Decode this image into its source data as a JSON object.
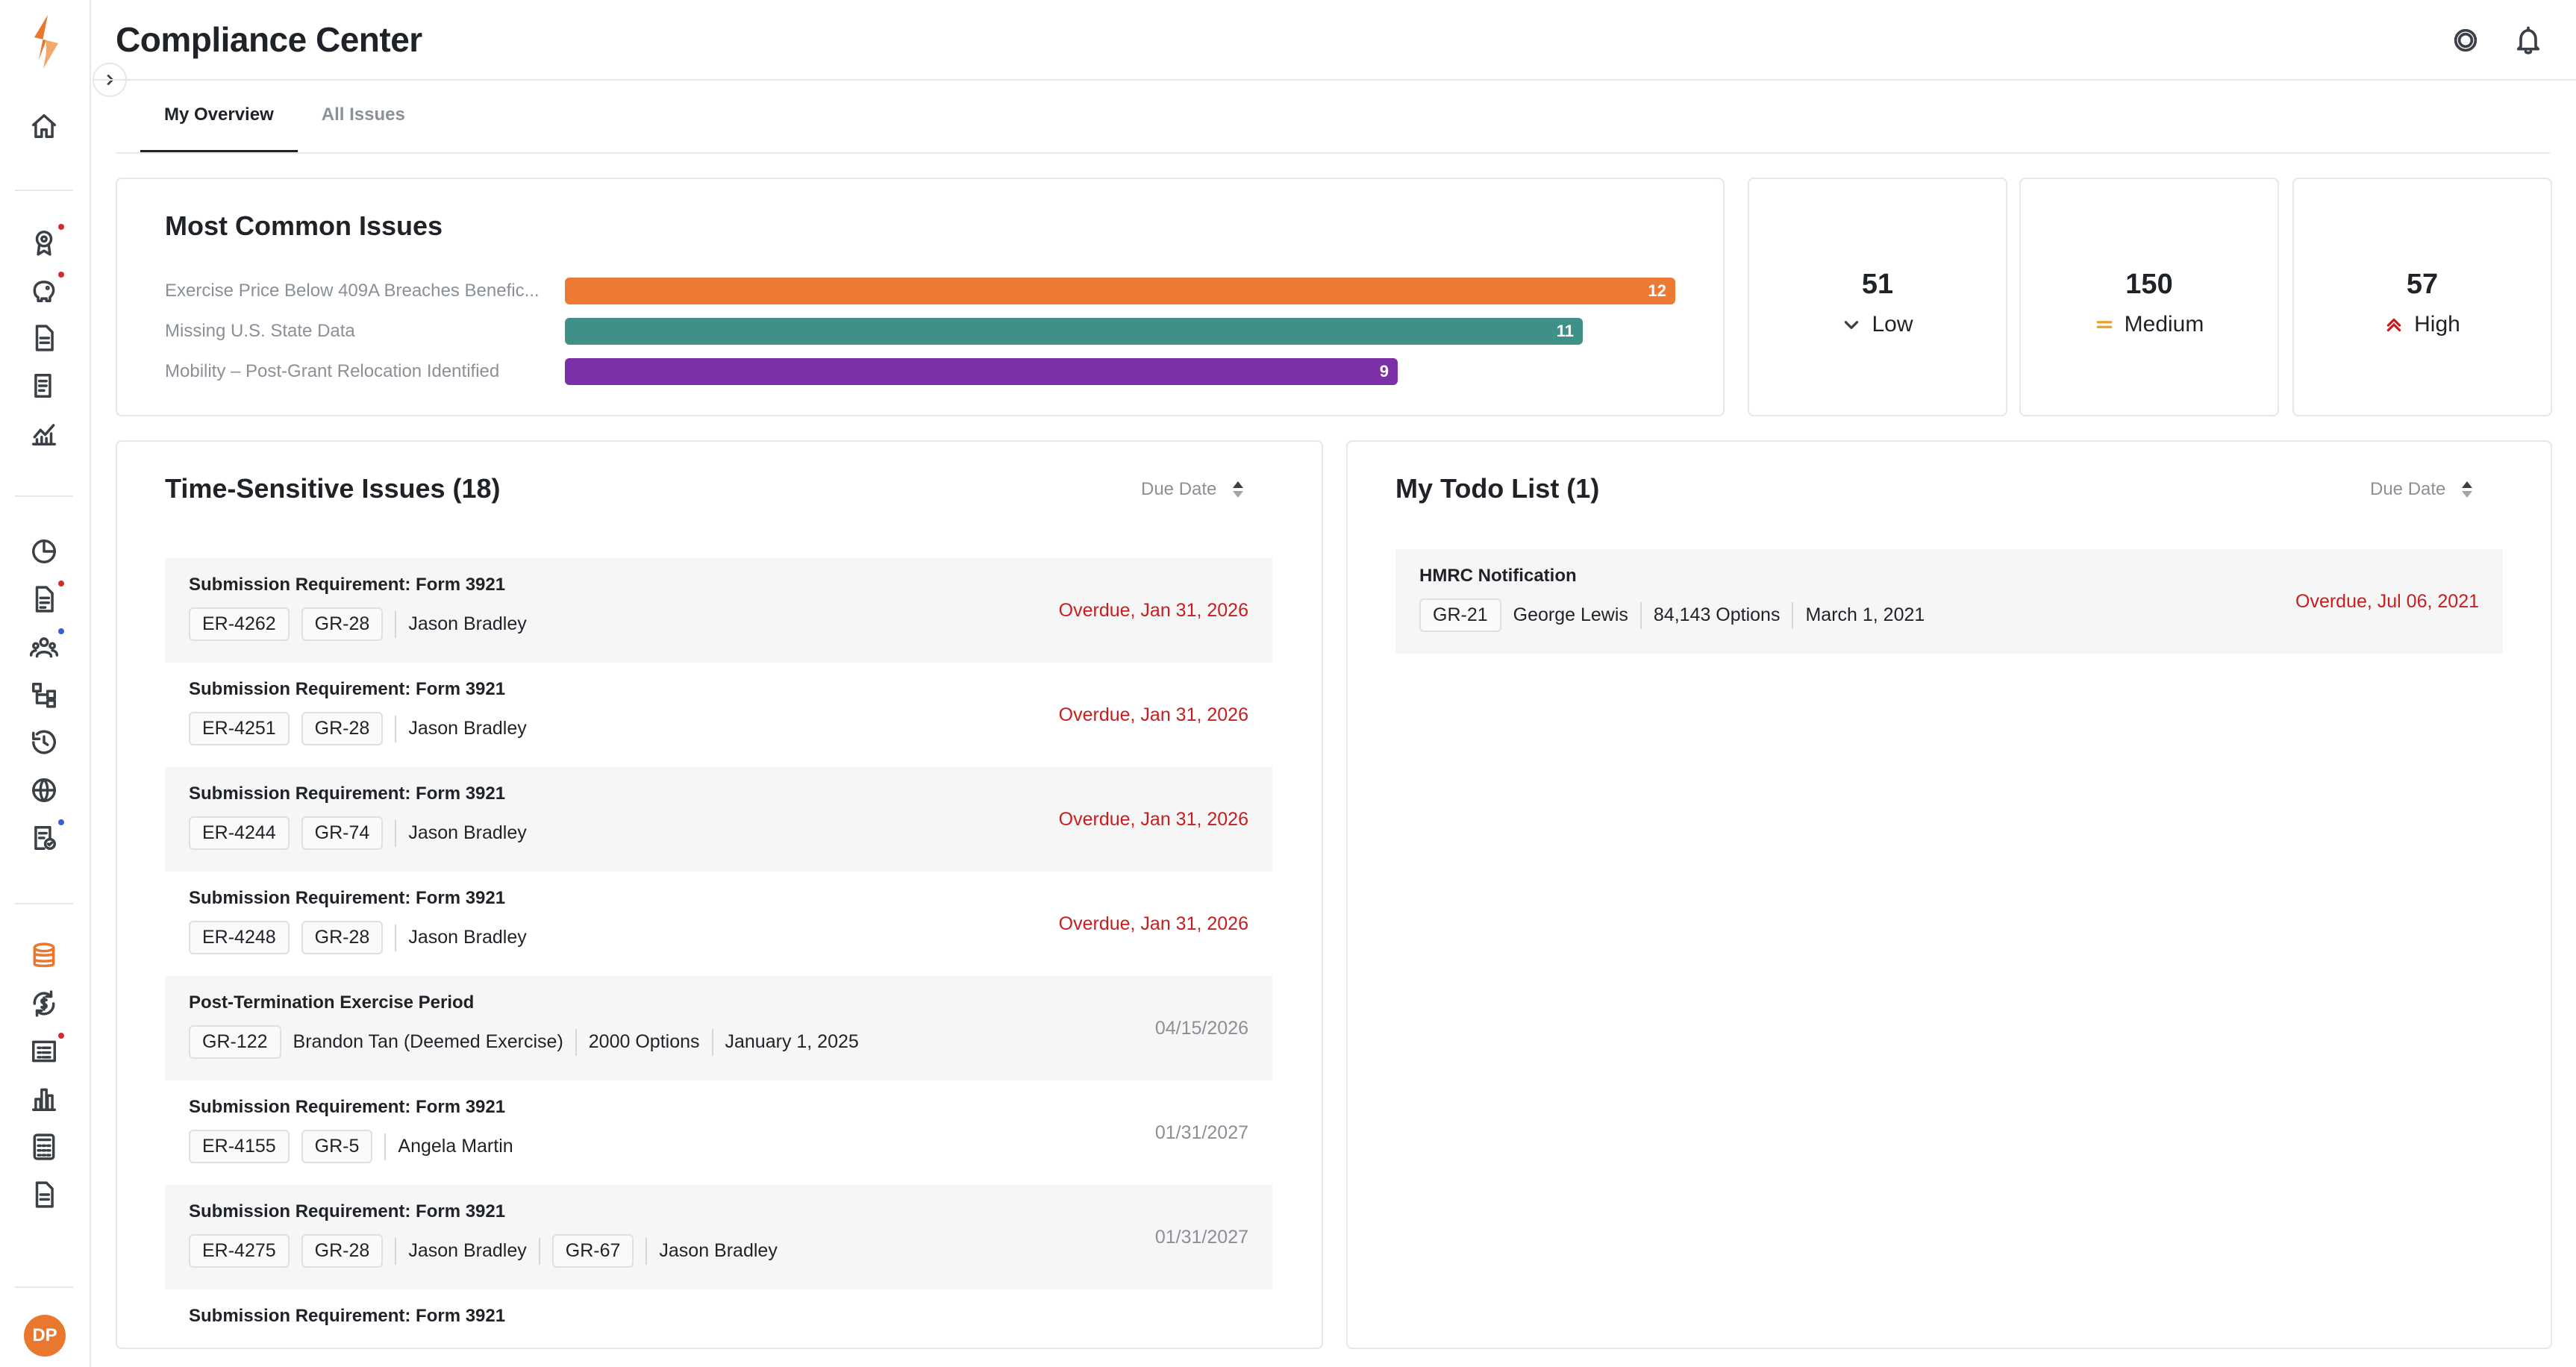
{
  "header": {
    "title": "Compliance Center"
  },
  "tabs": [
    {
      "label": "My Overview"
    },
    {
      "label": "All Issues"
    }
  ],
  "common_issues": {
    "title": "Most Common Issues",
    "bars": [
      {
        "label": "Exercise Price Below 409A Breaches Benefic...",
        "value": "12",
        "color": "#ec7a33"
      },
      {
        "label": "Missing U.S. State Data",
        "value": "11",
        "color": "#3f9188"
      },
      {
        "label": "Mobility – Post-Grant Relocation Identified",
        "value": "9",
        "color": "#7b30a8"
      }
    ]
  },
  "chart_data": {
    "type": "bar",
    "categories": [
      "Exercise Price Below 409A Breaches Benefic...",
      "Missing U.S. State Data",
      "Mobility – Post-Grant Relocation Identified"
    ],
    "values": [
      12,
      11,
      9
    ],
    "title": "Most Common Issues"
  },
  "stats": {
    "low": {
      "value": "51",
      "label": "Low",
      "color": "#3b3f46"
    },
    "medium": {
      "value": "150",
      "label": "Medium",
      "color": "#e8a325"
    },
    "high": {
      "value": "57",
      "label": "High",
      "color": "#c81e1e"
    }
  },
  "time_sensitive": {
    "title": "Time-Sensitive Issues (18)",
    "sort_label": "Due Date",
    "rows": [
      {
        "title": "Submission Requirement: Form 3921",
        "chip1": "ER-4262",
        "chip2": "GR-28",
        "person": "Jason Bradley",
        "date": "Overdue, Jan 31, 2026"
      },
      {
        "title": "Submission Requirement: Form 3921",
        "chip1": "ER-4251",
        "chip2": "GR-28",
        "person": "Jason Bradley",
        "date": "Overdue, Jan 31, 2026"
      },
      {
        "title": "Submission Requirement: Form 3921",
        "chip1": "ER-4244",
        "chip2": "GR-74",
        "person": "Jason Bradley",
        "date": "Overdue, Jan 31, 2026"
      },
      {
        "title": "Submission Requirement: Form 3921",
        "chip1": "ER-4248",
        "chip2": "GR-28",
        "person": "Jason Bradley",
        "date": "Overdue, Jan 31, 2026"
      },
      {
        "title": "Post-Termination Exercise Period",
        "chip1": "GR-122",
        "person": "Brandon Tan (Deemed Exercise)",
        "options": "2000 Options",
        "grant_date": "January 1, 2025",
        "date": "04/15/2026"
      },
      {
        "title": "Submission Requirement: Form 3921",
        "chip1": "ER-4155",
        "chip2": "GR-5",
        "person": "Angela Martin",
        "date": "01/31/2027"
      },
      {
        "title": "Submission Requirement: Form 3921",
        "chip1": "ER-4275",
        "chip2": "GR-28",
        "person": "Jason Bradley",
        "chip3": "GR-67",
        "person2": "Jason Bradley",
        "date": "01/31/2027"
      },
      {
        "title": "Submission Requirement: Form 3921"
      }
    ]
  },
  "todo": {
    "title": "My Todo List (1)",
    "sort_label": "Due Date",
    "rows": [
      {
        "title": "HMRC Notification",
        "chip1": "GR-21",
        "person": "George Lewis",
        "options": "84,143 Options",
        "grant_date": "March 1, 2021",
        "date": "Overdue, Jul 06, 2021"
      }
    ]
  },
  "user": {
    "initials": "DP"
  }
}
